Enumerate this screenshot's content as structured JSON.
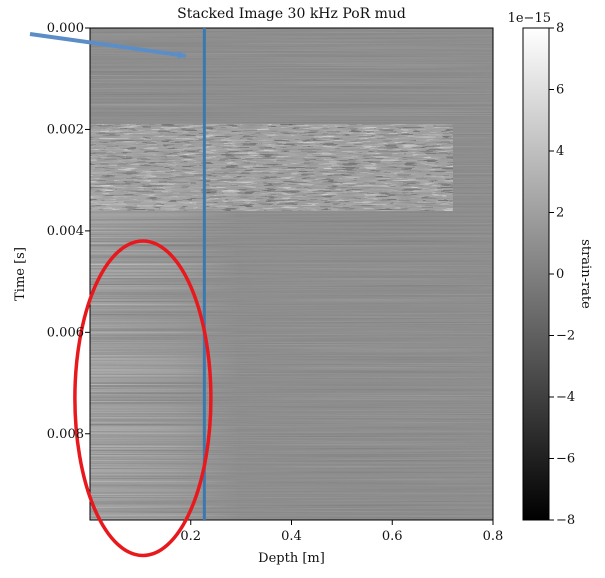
{
  "chart_data": {
    "type": "heatmap",
    "title": "Stacked Image 30 kHz PoR mud",
    "xlabel": "Depth [m]",
    "ylabel": "Time [s]",
    "xlim": [
      0.0,
      0.8
    ],
    "ylim": [
      0.0,
      0.0097
    ],
    "y_inverted": true,
    "x_ticks": [
      {
        "value": 0.2,
        "label": "0.2"
      },
      {
        "value": 0.4,
        "label": "0.4"
      },
      {
        "value": 0.6,
        "label": "0.6"
      },
      {
        "value": 0.8,
        "label": "0.8"
      }
    ],
    "y_ticks": [
      {
        "value": 0.0,
        "label": "0.000"
      },
      {
        "value": 0.002,
        "label": "0.002"
      },
      {
        "value": 0.004,
        "label": "0.004"
      },
      {
        "value": 0.006,
        "label": "0.006"
      },
      {
        "value": 0.008,
        "label": "0.008"
      }
    ],
    "colorbar": {
      "label": "strain-rate",
      "multiplier": "1e−15",
      "range": [
        -8,
        8
      ],
      "colormap": "gray",
      "ticks": [
        {
          "value": 8,
          "label": "8"
        },
        {
          "value": 6,
          "label": "6"
        },
        {
          "value": 4,
          "label": "4"
        },
        {
          "value": 2,
          "label": "2"
        },
        {
          "value": 0,
          "label": "0"
        },
        {
          "value": -2,
          "label": "−2"
        },
        {
          "value": -4,
          "label": "−4"
        },
        {
          "value": -6,
          "label": "−6"
        },
        {
          "value": -8,
          "label": "−8"
        }
      ]
    },
    "regions": {
      "strong_reflection": {
        "depth_range": [
          0.0,
          0.72
        ],
        "time_range": [
          0.0019,
          0.0033
        ]
      },
      "ringing": {
        "depth_range": [
          0.0,
          0.3
        ],
        "time_range": [
          0.0033,
          0.0097
        ]
      }
    },
    "annotations": {
      "vertical_line": {
        "depth": 0.227,
        "color": "#3a79b0"
      },
      "arrow": {
        "color": "#5b8ec7",
        "tip": {
          "depth": 0.19,
          "time": 0.00055
        }
      },
      "ellipse": {
        "color": "#e8191d",
        "center": {
          "depth": 0.105,
          "time": 0.0073
        },
        "rx_depth": 0.135,
        "ry_time": 0.0031
      }
    }
  }
}
